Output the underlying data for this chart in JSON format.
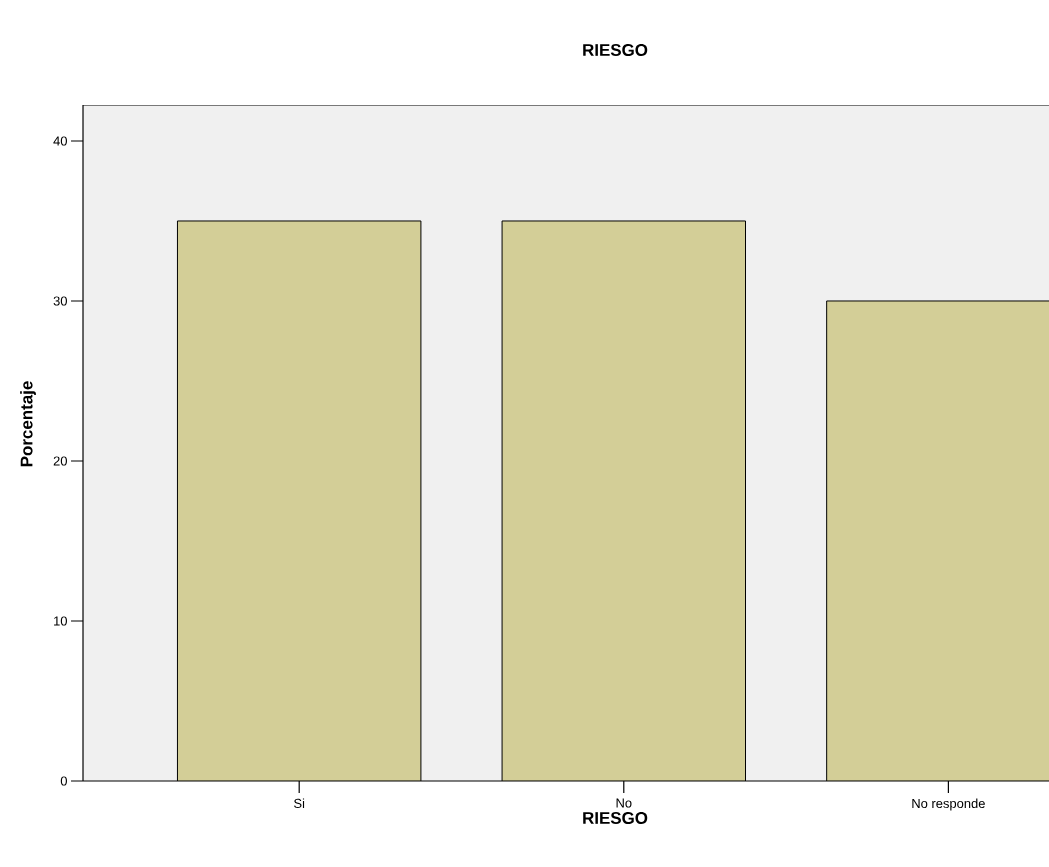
{
  "chart_data": {
    "type": "bar",
    "title": "RIESGO",
    "xlabel": "RIESGO",
    "ylabel": "Porcentaje",
    "categories": [
      "Si",
      "No",
      "No responde"
    ],
    "values": [
      35,
      35,
      30
    ],
    "color": "#d3ce97",
    "ylim": [
      0,
      42.25
    ],
    "yticks": [
      0,
      10,
      20,
      30,
      40
    ],
    "grid": false
  }
}
